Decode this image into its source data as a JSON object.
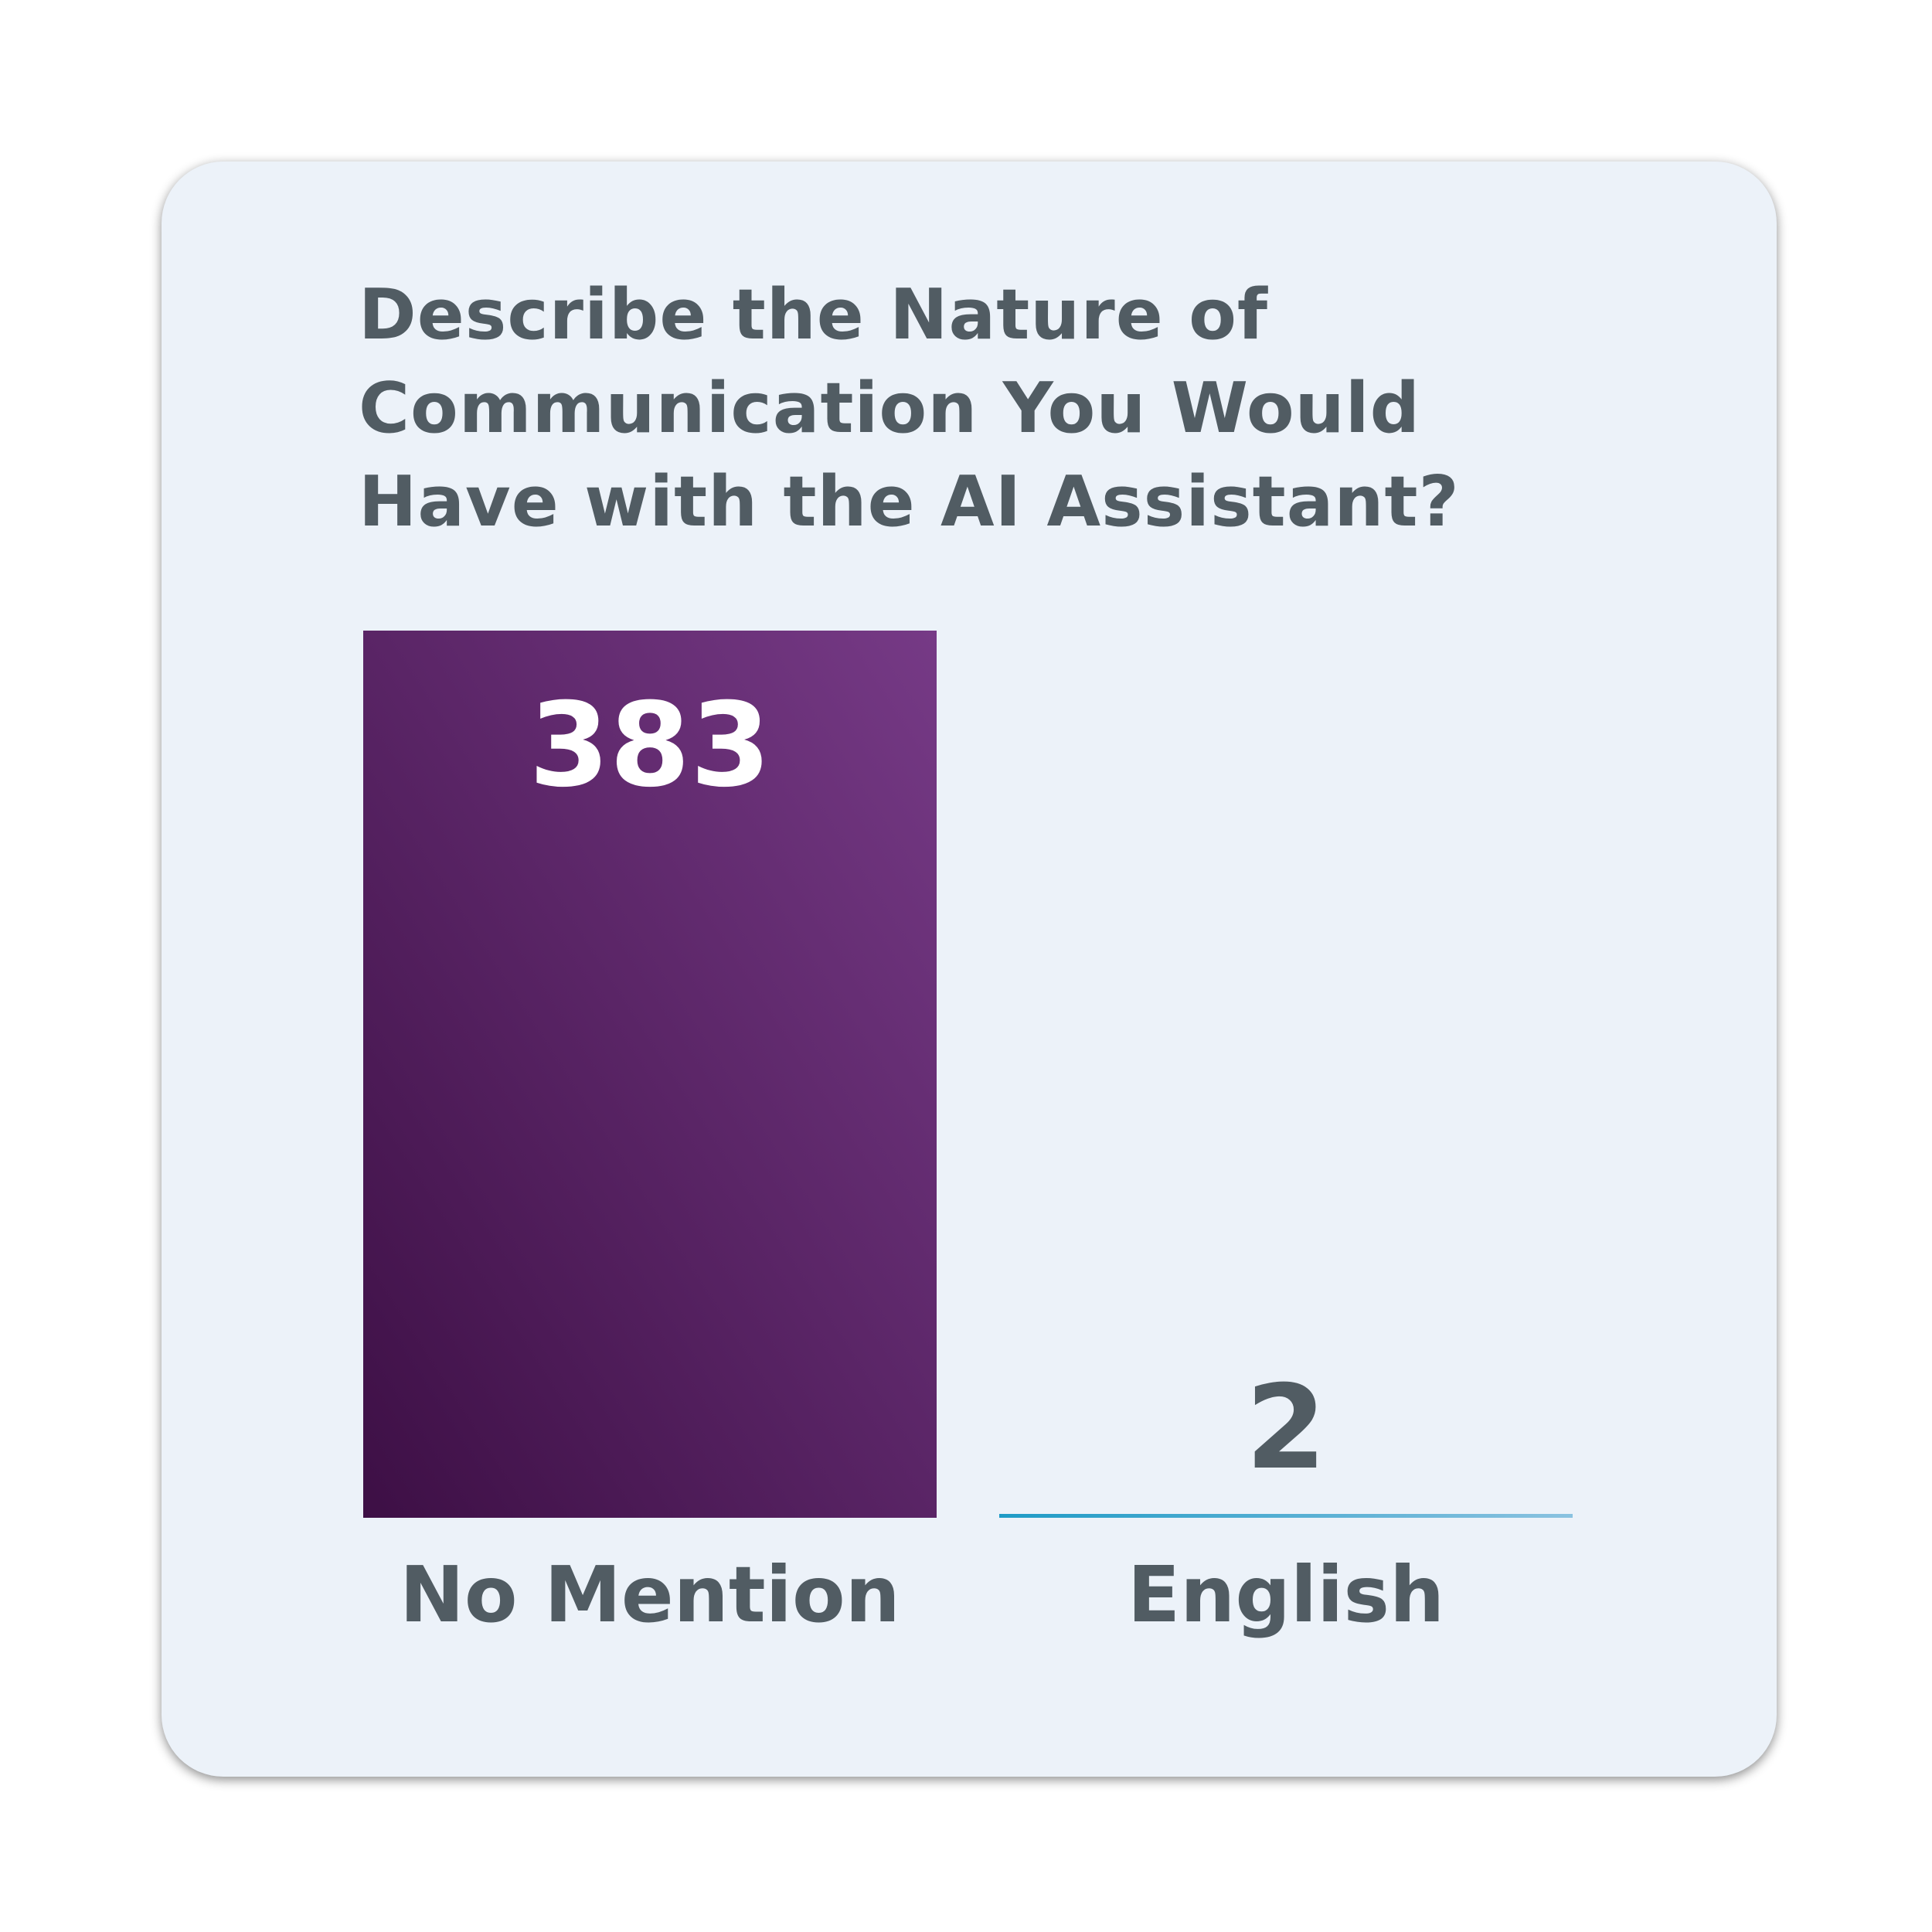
{
  "chart_data": {
    "type": "bar",
    "title": "Describe the Nature of Communication You Would Have with the AI Assistant?",
    "categories": [
      "No Mention",
      "English"
    ],
    "values": [
      383,
      2
    ],
    "data_labels": [
      "383",
      "2"
    ],
    "ylim": [
      0,
      383
    ],
    "grid": false,
    "legend": "none",
    "colors": {
      "bar_gradient_start": "#3d0f45",
      "bar_gradient_end": "#763a86",
      "small_bar_start": "#1e9bc6",
      "small_bar_end": "#8ac2e0",
      "label_inside": "#ffffff",
      "label_outside": "#515c63",
      "text": "#515c63",
      "card_background": "#ecf2f9"
    }
  }
}
